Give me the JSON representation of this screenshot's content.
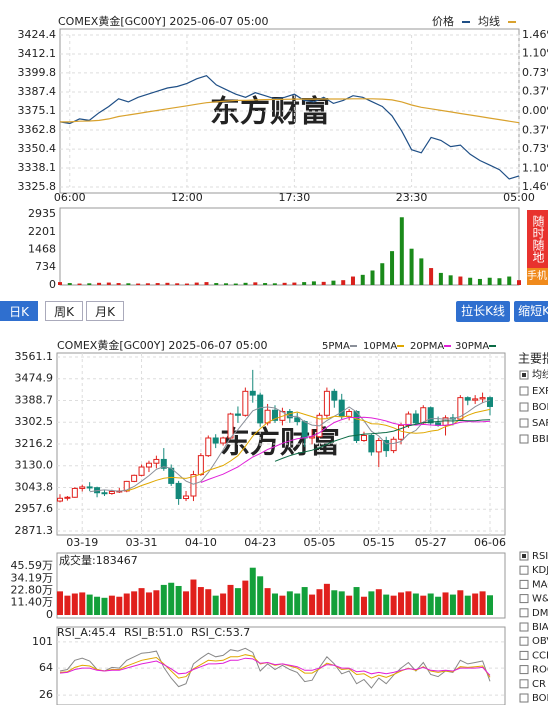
{
  "chart_data": [
    {
      "type": "line",
      "title": "COMEX黄金[GC00Y] 2025-06-07 05:00",
      "watermark": "东方财富",
      "up_color": "#e0201c",
      "down_color": "#1a8a1a",
      "grid": true,
      "categories": [
        null,
        "06:00",
        null,
        null,
        null,
        null,
        null,
        null,
        null,
        null,
        null,
        null,
        null,
        "12:00",
        null,
        null,
        null,
        null,
        null,
        null,
        null,
        null,
        null,
        null,
        "17:30",
        null,
        null,
        null,
        null,
        null,
        null,
        null,
        null,
        null,
        null,
        null,
        "23:30",
        null,
        null,
        null,
        null,
        null,
        null,
        null,
        null,
        null,
        null,
        "05:00"
      ],
      "series": [
        {
          "name": "价格",
          "color": "#1f4f86",
          "values": [
            3368,
            3367,
            3370,
            3369,
            3374,
            3378,
            3383,
            3381,
            3384,
            3386,
            3388,
            3390,
            3391,
            3393,
            3396,
            3398,
            3392,
            3389,
            3386,
            3384,
            3387,
            3385,
            3383,
            3384,
            3386,
            3382,
            3381,
            3384,
            3380,
            3382,
            3385,
            3384,
            3381,
            3378,
            3372,
            3362,
            3350,
            3348,
            3358,
            3356,
            3352,
            3353,
            3347,
            3343,
            3340,
            3337,
            3331,
            3333
          ]
        },
        {
          "name": "均线",
          "color": "#d9a22e",
          "values": [
            3368,
            3368,
            3368.5,
            3368.6,
            3369,
            3370,
            3371.5,
            3372.5,
            3373.5,
            3374.5,
            3375.5,
            3376.5,
            3377.5,
            3378.5,
            3379.5,
            3380.5,
            3381,
            3381.5,
            3382,
            3382,
            3382.3,
            3382.5,
            3382.6,
            3382.7,
            3382.8,
            3382.8,
            3382.8,
            3382.9,
            3382.9,
            3382.9,
            3383,
            3383,
            3383,
            3382.8,
            3382.3,
            3381,
            3379,
            3377.5,
            3376.5,
            3375.5,
            3374.5,
            3373.5,
            3372.5,
            3371.5,
            3370.5,
            3369.5,
            3368.5,
            3367.5
          ]
        }
      ],
      "ylim": [
        3325.8,
        3424.4
      ],
      "yticks": [
        3424.4,
        3412.1,
        3399.8,
        3387.4,
        3375.1,
        3362.8,
        3350.4,
        3338.1,
        3325.8
      ],
      "y2lim": [
        -1.46,
        1.46
      ],
      "y2ticks": [
        {
          "value": 1.46,
          "label": "1.46%"
        },
        {
          "value": 1.1,
          "label": "1.10%"
        },
        {
          "value": 0.73,
          "label": "0.73%"
        },
        {
          "value": 0.37,
          "label": "0.37%"
        },
        {
          "value": 0,
          "label": "0.00%"
        },
        {
          "value": -0.37,
          "label": "0.37%"
        },
        {
          "value": -0.73,
          "label": "0.73%"
        },
        {
          "value": -1.1,
          "label": "1.10%"
        },
        {
          "value": -1.46,
          "label": "1.46%"
        }
      ]
    },
    {
      "type": "bar",
      "up_color": "#d8201c",
      "down_color": "#1a8a1a",
      "values": [
        120,
        80,
        60,
        70,
        90,
        100,
        80,
        70,
        60,
        70,
        80,
        90,
        70,
        60,
        100,
        120,
        80,
        70,
        60,
        90,
        110,
        80,
        70,
        90,
        100,
        120,
        150,
        130,
        180,
        200,
        350,
        420,
        600,
        900,
        1400,
        2800,
        1500,
        1100,
        700,
        500,
        400,
        350,
        300,
        250,
        300,
        280,
        350,
        200
      ],
      "ylim": [
        0,
        2935
      ],
      "yticks": [
        2935,
        2201,
        1468,
        734,
        0
      ]
    },
    {
      "type": "candlestick",
      "title": "COMEX黄金[GC00Y] 2025-06-07 05:00",
      "watermark": "东方财富",
      "up_color": "#e0201c",
      "down_color": "#13887a",
      "grid": true,
      "categories": [
        null,
        null,
        null,
        "03-19",
        null,
        null,
        null,
        null,
        null,
        null,
        null,
        "03-31",
        null,
        null,
        null,
        null,
        null,
        null,
        null,
        "04-10",
        null,
        null,
        null,
        null,
        null,
        null,
        null,
        "04-23",
        null,
        null,
        null,
        null,
        null,
        null,
        null,
        "05-05",
        null,
        null,
        null,
        null,
        null,
        null,
        null,
        "05-15",
        null,
        null,
        null,
        null,
        null,
        null,
        "05-27",
        null,
        null,
        null,
        null,
        null,
        null,
        null,
        "06-06"
      ],
      "open": [
        2990,
        3001,
        3005,
        3040,
        3046,
        3043,
        3023,
        3020,
        3028,
        3030,
        3068,
        3092,
        3125,
        3140,
        3155,
        3120,
        3060,
        3000,
        3010,
        3095,
        3170,
        3240,
        3220,
        3240,
        3335,
        3330,
        3425,
        3410,
        3300,
        3350,
        3310,
        3345,
        3320,
        3305,
        3240,
        3245,
        3330,
        3425,
        3390,
        3325,
        3345,
        3230,
        3250,
        3185,
        3230,
        3190,
        3235,
        3290,
        3335,
        3300,
        3360,
        3300,
        3290,
        3320,
        3315,
        3400,
        3390,
        3395,
        3400
      ],
      "high": [
        3017,
        3010,
        3045,
        3055,
        3065,
        3047,
        3035,
        3035,
        3042,
        3070,
        3095,
        3135,
        3150,
        3170,
        3200,
        3135,
        3070,
        3030,
        3110,
        3180,
        3250,
        3255,
        3245,
        3340,
        3365,
        3440,
        3510,
        3420,
        3375,
        3370,
        3360,
        3355,
        3340,
        3310,
        3275,
        3340,
        3440,
        3435,
        3415,
        3355,
        3350,
        3265,
        3255,
        3240,
        3245,
        3245,
        3300,
        3345,
        3350,
        3370,
        3365,
        3325,
        3330,
        3335,
        3410,
        3405,
        3410,
        3420,
        3405
      ],
      "low": [
        2985,
        2992,
        3003,
        3028,
        3030,
        3005,
        3010,
        3015,
        3022,
        3025,
        3065,
        3088,
        3105,
        3120,
        3110,
        3050,
        2975,
        2990,
        2990,
        3090,
        3165,
        3200,
        3210,
        3235,
        3300,
        3325,
        3380,
        3285,
        3290,
        3300,
        3290,
        3300,
        3290,
        3205,
        3215,
        3240,
        3320,
        3360,
        3315,
        3310,
        3220,
        3225,
        3170,
        3125,
        3165,
        3180,
        3215,
        3280,
        3290,
        3295,
        3290,
        3285,
        3250,
        3290,
        3310,
        3370,
        3375,
        3380,
        3330
      ],
      "close": [
        3001,
        3005,
        3040,
        3046,
        3043,
        3023,
        3020,
        3028,
        3030,
        3068,
        3092,
        3125,
        3140,
        3155,
        3120,
        3060,
        3000,
        3010,
        3095,
        3170,
        3240,
        3220,
        3240,
        3335,
        3330,
        3425,
        3410,
        3300,
        3350,
        3310,
        3345,
        3320,
        3305,
        3240,
        3245,
        3330,
        3425,
        3390,
        3325,
        3345,
        3230,
        3250,
        3185,
        3230,
        3190,
        3235,
        3290,
        3335,
        3300,
        3360,
        3300,
        3290,
        3320,
        3315,
        3400,
        3390,
        3395,
        3400,
        3365
      ],
      "series": [
        {
          "name": "5PMA",
          "color": "#8a8f99",
          "values": [
            null,
            null,
            null,
            null,
            3027,
            3031.4,
            3034.4,
            3032,
            3028.8,
            3033.8,
            3047.6,
            3068.6,
            3091,
            3116,
            3126.4,
            3120,
            3095,
            3069,
            3057,
            3067,
            3103,
            3147,
            3193,
            3241,
            3273,
            3310,
            3348,
            3360,
            3363,
            3359,
            3343,
            3325,
            3326,
            3304,
            3291,
            3288,
            3309,
            3326,
            3343,
            3363,
            3343,
            3308,
            3267,
            3248,
            3217,
            3218,
            3226,
            3256,
            3270,
            3304,
            3317,
            3317,
            3314,
            3317,
            3325,
            3343,
            3364,
            3380,
            3390
          ]
        },
        {
          "name": "10PMA",
          "color": "#e0a800",
          "values": [
            null,
            null,
            null,
            null,
            null,
            null,
            null,
            null,
            null,
            3030.4,
            3039.5,
            3051.5,
            3061.5,
            3072.4,
            3080.1,
            3083.8,
            3081.8,
            3080,
            3086.5,
            3096.7,
            3111.5,
            3121,
            3131,
            3149,
            3170,
            3206.5,
            3247.5,
            3276.5,
            3302,
            3316,
            3326.5,
            3336.5,
            3343,
            3333.5,
            3325,
            3315.5,
            3317,
            3326,
            3323.5,
            3327,
            3315.5,
            3308.5,
            3296.5,
            3295.5,
            3290,
            3280.5,
            3267,
            3261.5,
            3259,
            3260.5,
            3267.5,
            3271.5,
            3285,
            3293.5,
            3314.5,
            3330,
            3340.5,
            3347,
            3353.5
          ]
        },
        {
          "name": "20PMA",
          "color": "#e020d8",
          "values": [
            null,
            null,
            null,
            null,
            null,
            null,
            null,
            null,
            null,
            null,
            null,
            null,
            null,
            null,
            null,
            null,
            null,
            null,
            null,
            3063.6,
            3075.5,
            3086.3,
            3096.3,
            3110.7,
            3125.1,
            3145.2,
            3164.7,
            3178.3,
            3194.3,
            3206.4,
            3219,
            3228.8,
            3237,
            3241.3,
            3247.5,
            3261,
            3282.3,
            3301.3,
            3312.8,
            3321.5,
            3321,
            3322.5,
            3319.8,
            3314.5,
            3307.5,
            3298,
            3292,
            3293.8,
            3291.3,
            3293.8,
            3291.5,
            3290,
            3290.8,
            3294.5,
            3302.3,
            3305.3,
            3303.8,
            3304.3,
            3306.3
          ]
        },
        {
          "name": "30PMA",
          "color": "#0b6b45",
          "values": [
            null,
            null,
            null,
            null,
            null,
            null,
            null,
            null,
            null,
            null,
            null,
            null,
            null,
            null,
            null,
            null,
            null,
            null,
            null,
            null,
            null,
            null,
            null,
            null,
            null,
            null,
            null,
            null,
            null,
            3147.7,
            3159.2,
            3169.7,
            3178.5,
            3185,
            3191.7,
            3201.9,
            3215.4,
            3227.5,
            3237.3,
            3246.6,
            3251.2,
            3255.3,
            3256.8,
            3259.3,
            3261.7,
            3267.5,
            3277.2,
            3288,
            3294.8,
            3301.2,
            3303.2,
            3305.5,
            3308.2,
            3307.5,
            3309.8,
            3308.7,
            3308.2,
            3311.5,
            3312
          ]
        }
      ],
      "ylim": [
        2871.3,
        3561.1
      ],
      "yticks": [
        3561.1,
        3474.9,
        3388.7,
        3302.5,
        3216.2,
        {
          "value": 3130,
          "label": "3130.0"
        },
        3043.8,
        2957.6,
        2871.3
      ]
    },
    {
      "type": "bar",
      "title": "成交量:183467",
      "up_color": "#e0201c",
      "down_color": "#13a03a",
      "values": [
        22,
        18,
        20,
        21,
        19,
        17,
        16,
        18,
        17,
        20,
        22,
        25,
        21,
        23,
        28,
        30,
        27,
        22,
        33,
        26,
        24,
        18,
        20,
        28,
        25,
        32,
        44,
        36,
        25,
        20,
        18,
        22,
        20,
        26,
        19,
        24,
        29,
        23,
        22,
        18,
        26,
        17,
        22,
        24,
        19,
        18,
        21,
        22,
        20,
        18,
        20,
        17,
        21,
        19,
        23,
        18,
        20,
        22,
        18.35
      ],
      "ylim": [
        0,
        45.59
      ],
      "yticks": [
        {
          "value": 45.59,
          "label": "45.59万"
        },
        {
          "value": 34.19,
          "label": "34.19万"
        },
        {
          "value": 22.8,
          "label": "22.80万"
        },
        {
          "value": 11.4,
          "label": "11.40万"
        },
        0
      ]
    },
    {
      "type": "line",
      "grid": true,
      "series": [
        {
          "name": "RSI_A:45.4",
          "color": "#888888",
          "values": [
            60,
            62,
            75,
            78,
            74,
            62,
            60,
            65,
            64,
            75,
            80,
            85,
            86,
            88,
            65,
            50,
            38,
            42,
            70,
            78,
            85,
            80,
            82,
            90,
            88,
            92,
            86,
            60,
            70,
            62,
            68,
            62,
            58,
            45,
            47,
            65,
            80,
            70,
            56,
            60,
            42,
            48,
            36,
            50,
            42,
            54,
            64,
            72,
            60,
            72,
            55,
            52,
            60,
            58,
            75,
            70,
            72,
            74,
            45.4
          ]
        },
        {
          "name": "RSI_B:51.0",
          "color": "#e0a800",
          "values": [
            58,
            59,
            65,
            68,
            67,
            62,
            60,
            62,
            62,
            67,
            71,
            75,
            77,
            79,
            70,
            60,
            50,
            52,
            63,
            69,
            75,
            74,
            75,
            80,
            80,
            83,
            81,
            70,
            72,
            68,
            70,
            67,
            64,
            57,
            57,
            63,
            71,
            68,
            62,
            63,
            55,
            56,
            50,
            54,
            51,
            55,
            60,
            64,
            61,
            66,
            60,
            58,
            60,
            59,
            66,
            65,
            66,
            67,
            51.0
          ]
        },
        {
          "name": "RSI_C:53.7",
          "color": "#e020d8",
          "values": [
            57,
            58,
            62,
            64,
            64,
            61,
            60,
            61,
            61,
            64,
            67,
            70,
            72,
            74,
            69,
            63,
            56,
            57,
            62,
            66,
            70,
            70,
            71,
            75,
            75,
            78,
            77,
            71,
            72,
            69,
            70,
            68,
            66,
            61,
            61,
            64,
            69,
            68,
            64,
            64,
            59,
            60,
            56,
            58,
            56,
            58,
            61,
            63,
            62,
            65,
            61,
            60,
            61,
            60,
            64,
            64,
            64,
            65,
            53.7
          ]
        }
      ],
      "ylim": [
        12,
        122
      ],
      "yticks": [
        101,
        64,
        26
      ]
    }
  ],
  "ui": {
    "side_button": "随时随地",
    "phone_button": "手机",
    "tabs": [
      "日K",
      "周K",
      "月K"
    ],
    "active_tab": 0,
    "buttons": [
      "拉长K线",
      "缩短K"
    ],
    "main_indicators": {
      "title": "主要指",
      "items": [
        "均线",
        "EXP",
        "BOL",
        "SAR",
        "BBI"
      ],
      "checked": 0
    },
    "sub_indicators": {
      "items": [
        "RSI",
        "KDJ",
        "MAC",
        "W&R",
        "DMI",
        "BIA",
        "OBV",
        "CCI",
        "ROC",
        "CR",
        "BOL"
      ],
      "checked": 0
    }
  }
}
